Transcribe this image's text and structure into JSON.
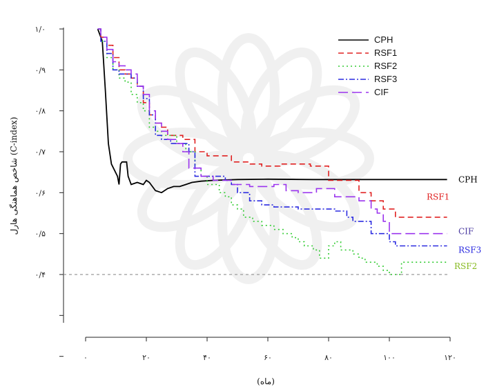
{
  "chart_data": {
    "type": "line",
    "title": "",
    "xlabel": "(ماه)",
    "ylabel": "شاخص هماهنگی هارل (C-index)",
    "xlim": [
      0,
      120
    ],
    "ylim": [
      0.2,
      1.0
    ],
    "x_ticks": [
      0,
      20,
      40,
      60,
      80,
      100,
      120
    ],
    "x_tick_labels": [
      "۰",
      "۲۰",
      "۴۰",
      "۶۰",
      "۸۰",
      "۱۰۰",
      "۱۲۰"
    ],
    "y_ticks": [
      0.4,
      0.5,
      0.6,
      0.7,
      0.8,
      0.9,
      1.0
    ],
    "y_tick_labels": [
      "۰/۴",
      "۰/۵",
      "۰/۶",
      "۰/۷",
      "۰/۸",
      "۰/۹",
      "۱/۰"
    ],
    "grid": false,
    "legend_position": "top-right",
    "reference_line": {
      "y": 0.4,
      "color": "#9a9a9a"
    },
    "series": [
      {
        "name": "CPH",
        "label": "CPH",
        "color": "#000000",
        "dash": "solid",
        "points": [
          [
            4,
            1.0
          ],
          [
            5.5,
            0.97
          ],
          [
            6.5,
            0.85
          ],
          [
            7.5,
            0.72
          ],
          [
            8.5,
            0.67
          ],
          [
            9.5,
            0.655
          ],
          [
            10.5,
            0.64
          ],
          [
            11,
            0.62
          ],
          [
            11.5,
            0.67
          ],
          [
            12,
            0.675
          ],
          [
            13.5,
            0.675
          ],
          [
            14,
            0.64
          ],
          [
            15,
            0.62
          ],
          [
            17,
            0.625
          ],
          [
            19,
            0.62
          ],
          [
            20,
            0.63
          ],
          [
            21,
            0.625
          ],
          [
            23,
            0.605
          ],
          [
            25,
            0.6
          ],
          [
            27,
            0.61
          ],
          [
            29,
            0.615
          ],
          [
            31,
            0.615
          ],
          [
            33,
            0.62
          ],
          [
            35,
            0.625
          ],
          [
            38,
            0.628
          ],
          [
            42,
            0.63
          ],
          [
            50,
            0.632
          ],
          [
            60,
            0.633
          ],
          [
            75,
            0.632
          ],
          [
            90,
            0.632
          ],
          [
            100,
            0.632
          ],
          [
            108,
            0.632
          ],
          [
            119,
            0.632
          ]
        ]
      },
      {
        "name": "RSF1",
        "label": "RSF1",
        "color": "#e02020",
        "dash": "8,5",
        "points": [
          [
            4,
            1.0
          ],
          [
            5,
            0.98
          ],
          [
            7,
            0.96
          ],
          [
            9,
            0.93
          ],
          [
            11,
            0.9
          ],
          [
            13,
            0.89
          ],
          [
            15,
            0.88
          ],
          [
            17,
            0.86
          ],
          [
            19,
            0.82
          ],
          [
            21,
            0.79
          ],
          [
            23,
            0.77
          ],
          [
            25,
            0.76
          ],
          [
            27,
            0.74
          ],
          [
            30,
            0.74
          ],
          [
            32,
            0.73
          ],
          [
            36,
            0.7
          ],
          [
            40,
            0.69
          ],
          [
            46,
            0.69
          ],
          [
            48,
            0.675
          ],
          [
            54,
            0.67
          ],
          [
            58,
            0.665
          ],
          [
            64,
            0.67
          ],
          [
            68,
            0.67
          ],
          [
            74,
            0.665
          ],
          [
            78,
            0.665
          ],
          [
            80,
            0.63
          ],
          [
            86,
            0.63
          ],
          [
            90,
            0.6
          ],
          [
            92,
            0.6
          ],
          [
            94,
            0.58
          ],
          [
            96,
            0.58
          ],
          [
            98,
            0.56
          ],
          [
            100,
            0.56
          ],
          [
            102,
            0.54
          ],
          [
            110,
            0.54
          ],
          [
            119,
            0.54
          ]
        ]
      },
      {
        "name": "RSF2",
        "label": "RSF2",
        "color": "#33cc33",
        "dash": "2,4",
        "points": [
          [
            4,
            1.0
          ],
          [
            5,
            0.97
          ],
          [
            7,
            0.93
          ],
          [
            9,
            0.9
          ],
          [
            11,
            0.88
          ],
          [
            13,
            0.87
          ],
          [
            15,
            0.84
          ],
          [
            17,
            0.82
          ],
          [
            19,
            0.8
          ],
          [
            21,
            0.76
          ],
          [
            23,
            0.75
          ],
          [
            25,
            0.74
          ],
          [
            28,
            0.74
          ],
          [
            30,
            0.72
          ],
          [
            33,
            0.7
          ],
          [
            36,
            0.66
          ],
          [
            38,
            0.64
          ],
          [
            40,
            0.62
          ],
          [
            42,
            0.62
          ],
          [
            44,
            0.6
          ],
          [
            46,
            0.59
          ],
          [
            48,
            0.57
          ],
          [
            50,
            0.56
          ],
          [
            52,
            0.54
          ],
          [
            55,
            0.53
          ],
          [
            58,
            0.52
          ],
          [
            62,
            0.51
          ],
          [
            65,
            0.5
          ],
          [
            68,
            0.49
          ],
          [
            70,
            0.48
          ],
          [
            72,
            0.47
          ],
          [
            75,
            0.46
          ],
          [
            77,
            0.44
          ],
          [
            80,
            0.47
          ],
          [
            82,
            0.48
          ],
          [
            84,
            0.46
          ],
          [
            86,
            0.46
          ],
          [
            88,
            0.45
          ],
          [
            90,
            0.44
          ],
          [
            92,
            0.43
          ],
          [
            94,
            0.43
          ],
          [
            96,
            0.42
          ],
          [
            98,
            0.41
          ],
          [
            100,
            0.4
          ],
          [
            102,
            0.4
          ],
          [
            104,
            0.43
          ],
          [
            110,
            0.43
          ],
          [
            119,
            0.43
          ]
        ]
      },
      {
        "name": "RSF3",
        "label": "RSF3",
        "color": "#2a2ae0",
        "dash": "8,3,2,3",
        "points": [
          [
            4,
            1.0
          ],
          [
            5,
            0.97
          ],
          [
            7,
            0.94
          ],
          [
            9,
            0.9
          ],
          [
            11,
            0.89
          ],
          [
            13,
            0.89
          ],
          [
            15,
            0.88
          ],
          [
            17,
            0.86
          ],
          [
            19,
            0.83
          ],
          [
            21,
            0.79
          ],
          [
            23,
            0.74
          ],
          [
            25,
            0.73
          ],
          [
            28,
            0.72
          ],
          [
            32,
            0.72
          ],
          [
            34,
            0.7
          ],
          [
            36,
            0.64
          ],
          [
            40,
            0.64
          ],
          [
            46,
            0.63
          ],
          [
            48,
            0.62
          ],
          [
            50,
            0.6
          ],
          [
            54,
            0.58
          ],
          [
            58,
            0.57
          ],
          [
            62,
            0.565
          ],
          [
            66,
            0.565
          ],
          [
            70,
            0.56
          ],
          [
            76,
            0.56
          ],
          [
            80,
            0.56
          ],
          [
            82,
            0.555
          ],
          [
            84,
            0.555
          ],
          [
            86,
            0.54
          ],
          [
            88,
            0.53
          ],
          [
            90,
            0.53
          ],
          [
            92,
            0.53
          ],
          [
            94,
            0.5
          ],
          [
            98,
            0.5
          ],
          [
            100,
            0.48
          ],
          [
            102,
            0.47
          ],
          [
            110,
            0.47
          ],
          [
            119,
            0.47
          ]
        ]
      },
      {
        "name": "CIF",
        "label": "CIF",
        "color": "#9a33ee",
        "dash": "14,6",
        "points": [
          [
            4,
            1.0
          ],
          [
            5,
            0.98
          ],
          [
            7,
            0.95
          ],
          [
            9,
            0.92
          ],
          [
            11,
            0.91
          ],
          [
            13,
            0.9
          ],
          [
            15,
            0.89
          ],
          [
            17,
            0.86
          ],
          [
            19,
            0.84
          ],
          [
            21,
            0.8
          ],
          [
            23,
            0.77
          ],
          [
            25,
            0.75
          ],
          [
            27,
            0.73
          ],
          [
            30,
            0.72
          ],
          [
            32,
            0.7
          ],
          [
            34,
            0.66
          ],
          [
            38,
            0.64
          ],
          [
            42,
            0.63
          ],
          [
            46,
            0.63
          ],
          [
            48,
            0.62
          ],
          [
            52,
            0.62
          ],
          [
            54,
            0.615
          ],
          [
            58,
            0.615
          ],
          [
            62,
            0.62
          ],
          [
            66,
            0.605
          ],
          [
            70,
            0.6
          ],
          [
            74,
            0.6
          ],
          [
            76,
            0.61
          ],
          [
            80,
            0.61
          ],
          [
            82,
            0.59
          ],
          [
            88,
            0.59
          ],
          [
            90,
            0.58
          ],
          [
            92,
            0.58
          ],
          [
            94,
            0.56
          ],
          [
            96,
            0.55
          ],
          [
            98,
            0.53
          ],
          [
            100,
            0.5
          ],
          [
            110,
            0.5
          ],
          [
            119,
            0.5
          ]
        ]
      }
    ],
    "end_labels": [
      {
        "series": "CPH",
        "text": "CPH",
        "y": 0.632,
        "color": "#000000"
      },
      {
        "series": "RSF1",
        "text": "RSF1",
        "y": 0.59,
        "color": "#e02020"
      },
      {
        "series": "CIF",
        "text": "CIF",
        "y": 0.505,
        "color": "#4a3aa0"
      },
      {
        "series": "RSF3",
        "text": "RSF3",
        "y": 0.46,
        "color": "#2a2ae0"
      },
      {
        "series": "RSF2",
        "text": "RSF2",
        "y": 0.42,
        "color": "#88bb22"
      }
    ]
  }
}
